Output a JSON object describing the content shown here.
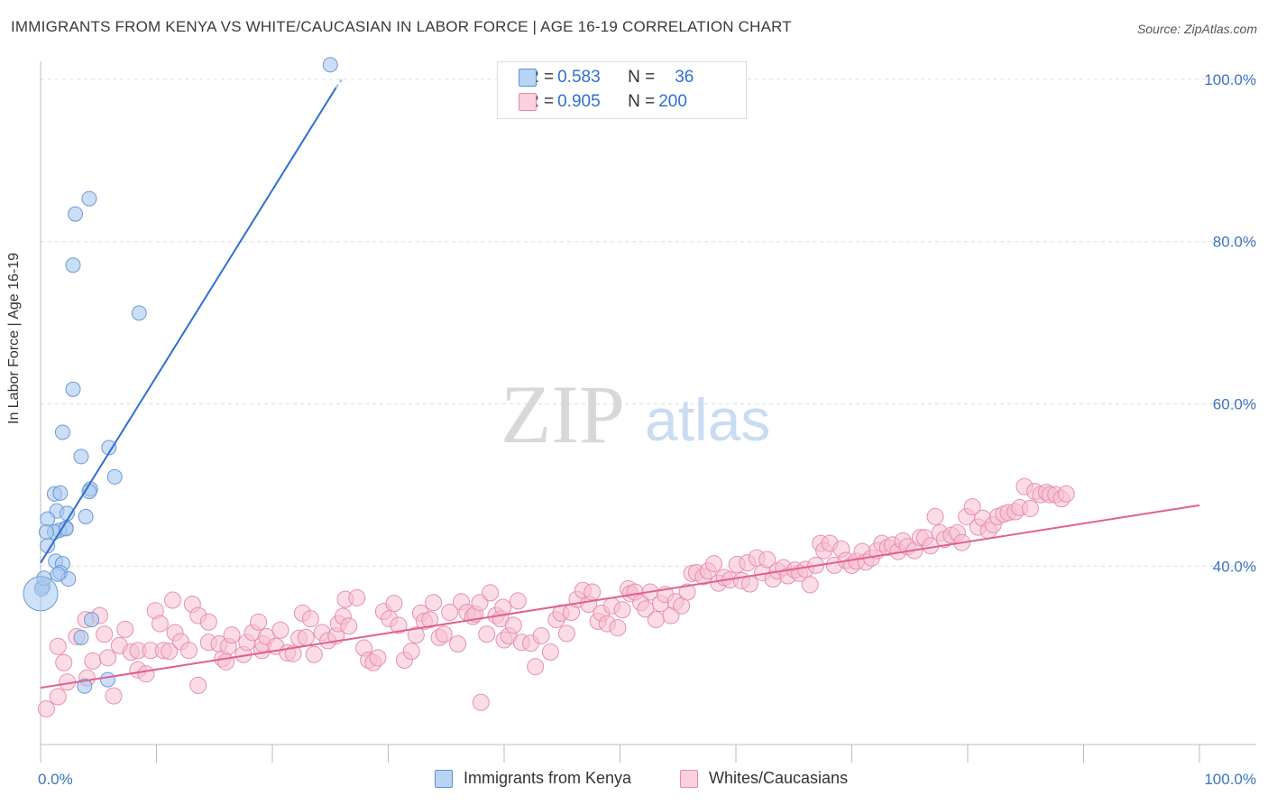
{
  "header": {
    "title": "IMMIGRANTS FROM KENYA VS WHITE/CAUCASIAN IN LABOR FORCE | AGE 16-19 CORRELATION CHART",
    "source": "Source: ZipAtlas.com"
  },
  "watermark": {
    "zip": "ZIP",
    "atlas": "atlas"
  },
  "legend": {
    "rows": [
      {
        "r_label": "R = ",
        "r_value": "0.583",
        "n_label": "N = ",
        "n_value": "36",
        "color": "#a8c8f0",
        "border": "#5b8fd6"
      },
      {
        "r_label": "R = ",
        "r_value": "0.905",
        "n_label": "N = ",
        "n_value": "200",
        "color": "#f8c0d0",
        "border": "#e888a8"
      }
    ]
  },
  "bottom_legend": {
    "items": [
      {
        "label": "Immigrants from Kenya",
        "color": "#b8d4f5",
        "border": "#5b8fd6"
      },
      {
        "label": "Whites/Caucasians",
        "color": "#fad0dc",
        "border": "#e888a8"
      }
    ]
  },
  "chart_data": {
    "type": "scatter",
    "title": "IMMIGRANTS FROM KENYA VS WHITE/CAUCASIAN IN LABOR FORCE | AGE 16-19 CORRELATION CHART",
    "xlabel": "",
    "ylabel": "In Labor Force | Age 16-19",
    "xlim": [
      0,
      100
    ],
    "ylim": [
      18,
      102
    ],
    "x_tick_labels": [
      "0.0%",
      "100.0%"
    ],
    "y_ticks": [
      40,
      60,
      80,
      100
    ],
    "y_tick_labels": [
      "40.0%",
      "60.0%",
      "80.0%",
      "100.0%"
    ],
    "grid": true,
    "series": [
      {
        "name": "Immigrants from Kenya",
        "color": "#a8c8f0",
        "stroke": "#6a9ad8",
        "line_color": "#2f6fd0",
        "trend": [
          [
            0,
            40.4
          ],
          [
            25.5,
            99
          ]
        ],
        "points": [
          [
            25,
            101.8
          ],
          [
            4.2,
            85.3
          ],
          [
            3,
            83.4
          ],
          [
            2.8,
            77.1
          ],
          [
            8.5,
            71.2
          ],
          [
            2.8,
            61.8
          ],
          [
            1.9,
            56.5
          ],
          [
            3.5,
            53.5
          ],
          [
            5.9,
            54.6
          ],
          [
            6.4,
            51
          ],
          [
            4.3,
            49.5
          ],
          [
            4.2,
            49.2
          ],
          [
            1.2,
            48.9
          ],
          [
            1.7,
            49
          ],
          [
            3.9,
            46.1
          ],
          [
            1.4,
            46.8
          ],
          [
            2.3,
            46.5
          ],
          [
            0.6,
            45.8
          ],
          [
            2.2,
            44.7
          ],
          [
            1.6,
            44.4
          ],
          [
            1.2,
            44.2
          ],
          [
            2.2,
            44.6
          ],
          [
            0.5,
            44.2
          ],
          [
            0.6,
            42.5
          ],
          [
            1.3,
            40.6
          ],
          [
            1.9,
            40.3
          ],
          [
            1.7,
            39.2
          ],
          [
            2.4,
            38.4
          ],
          [
            0.2,
            37.5
          ],
          [
            0.1,
            37.2
          ],
          [
            4.4,
            33.4
          ],
          [
            3.5,
            31.2
          ],
          [
            5.8,
            26
          ],
          [
            3.8,
            25.2
          ],
          [
            0.3,
            38.5
          ],
          [
            1.5,
            39
          ]
        ]
      },
      {
        "name": "Whites/Caucasians",
        "color": "#f8c0d0",
        "stroke": "#e590ac",
        "line_color": "#e06090",
        "trend": [
          [
            0,
            25
          ],
          [
            100,
            47.5
          ]
        ],
        "points": [
          [
            0.5,
            22.4
          ],
          [
            1.5,
            23.9
          ],
          [
            1.5,
            30.1
          ],
          [
            2,
            28.1
          ],
          [
            2.3,
            25.7
          ],
          [
            3.1,
            31.3
          ],
          [
            3.9,
            33.4
          ],
          [
            4,
            26.2
          ],
          [
            4.5,
            28.3
          ],
          [
            5.1,
            33.9
          ],
          [
            5.8,
            28.7
          ],
          [
            5.5,
            31.6
          ],
          [
            6.3,
            24
          ],
          [
            6.8,
            30.2
          ],
          [
            7.3,
            32.2
          ],
          [
            7.8,
            29.4
          ],
          [
            8.4,
            27.2
          ],
          [
            8.4,
            29.6
          ],
          [
            9.1,
            26.7
          ],
          [
            9.5,
            29.6
          ],
          [
            9.9,
            34.5
          ],
          [
            10.3,
            32.9
          ],
          [
            10.6,
            29.6
          ],
          [
            11.1,
            29.5
          ],
          [
            11.4,
            35.8
          ],
          [
            11.6,
            31.8
          ],
          [
            12.1,
            30.7
          ],
          [
            12.8,
            29.6
          ],
          [
            13.1,
            35.3
          ],
          [
            13.6,
            33.9
          ],
          [
            13.6,
            25.3
          ],
          [
            14.5,
            33.1
          ],
          [
            14.5,
            30.6
          ],
          [
            15.4,
            30.4
          ],
          [
            15.7,
            28.6
          ],
          [
            16,
            28.2
          ],
          [
            16.2,
            30.1
          ],
          [
            16.5,
            31.5
          ],
          [
            17.5,
            29.1
          ],
          [
            17.8,
            30.6
          ],
          [
            18.3,
            31.8
          ],
          [
            18.8,
            33.1
          ],
          [
            19.1,
            29.6
          ],
          [
            19.2,
            30.4
          ],
          [
            19.5,
            31.3
          ],
          [
            20.3,
            30.1
          ],
          [
            20.7,
            32.1
          ],
          [
            21.3,
            29.3
          ],
          [
            21.8,
            29.2
          ],
          [
            22.3,
            31.1
          ],
          [
            22.6,
            34.2
          ],
          [
            22.9,
            31.2
          ],
          [
            23.3,
            33.5
          ],
          [
            23.6,
            29.1
          ],
          [
            24.3,
            31.8
          ],
          [
            24.8,
            30.8
          ],
          [
            25.5,
            31.4
          ],
          [
            25.7,
            32.9
          ],
          [
            26.1,
            33.8
          ],
          [
            26.6,
            32.6
          ],
          [
            26.3,
            35.9
          ],
          [
            27.3,
            36.1
          ],
          [
            27.9,
            29.9
          ],
          [
            28.3,
            28.4
          ],
          [
            28.7,
            28.1
          ],
          [
            29.1,
            28.7
          ],
          [
            29.6,
            34.4
          ],
          [
            30.1,
            33.5
          ],
          [
            30.5,
            35.4
          ],
          [
            30.9,
            32.7
          ],
          [
            31.4,
            28.4
          ],
          [
            32,
            29.5
          ],
          [
            32.4,
            31.5
          ],
          [
            32.8,
            34.2
          ],
          [
            33.1,
            33.2
          ],
          [
            33.6,
            33.4
          ],
          [
            33.9,
            35.5
          ],
          [
            34.4,
            31.2
          ],
          [
            34.8,
            31.6
          ],
          [
            35.3,
            34.3
          ],
          [
            36,
            30.4
          ],
          [
            36.3,
            35.6
          ],
          [
            36.8,
            34.3
          ],
          [
            37.3,
            33.8
          ],
          [
            37.5,
            34.1
          ],
          [
            37.9,
            35.5
          ],
          [
            38,
            23.2
          ],
          [
            38.5,
            31.6
          ],
          [
            38.8,
            36.7
          ],
          [
            39.3,
            33.9
          ],
          [
            39.7,
            33.5
          ],
          [
            39.9,
            34.9
          ],
          [
            40,
            30.9
          ],
          [
            40.4,
            31.4
          ],
          [
            40.8,
            32.7
          ],
          [
            41.2,
            35.7
          ],
          [
            41.5,
            30.6
          ],
          [
            42.3,
            30.5
          ],
          [
            42.7,
            27.6
          ],
          [
            43.2,
            31.4
          ],
          [
            44,
            29.4
          ],
          [
            44.5,
            33.4
          ],
          [
            44.9,
            34.2
          ],
          [
            45.4,
            31.7
          ],
          [
            45.8,
            34.3
          ],
          [
            46.3,
            35.9
          ],
          [
            46.8,
            37
          ],
          [
            47.3,
            35.3
          ],
          [
            47.6,
            36.8
          ],
          [
            48.1,
            33.2
          ],
          [
            48.4,
            34.2
          ],
          [
            48.9,
            32.9
          ],
          [
            49.3,
            35.1
          ],
          [
            49.8,
            32.4
          ],
          [
            50.2,
            34.6
          ],
          [
            50.7,
            37.2
          ],
          [
            50.9,
            36.6
          ],
          [
            51.3,
            36.8
          ],
          [
            51.8,
            35.5
          ],
          [
            52.2,
            34.7
          ],
          [
            52.6,
            36.8
          ],
          [
            53.1,
            33.4
          ],
          [
            53.5,
            35.4
          ],
          [
            53.9,
            36.5
          ],
          [
            54.4,
            33.9
          ],
          [
            54.8,
            35.6
          ],
          [
            55.3,
            35.1
          ],
          [
            55.8,
            36.8
          ],
          [
            56.2,
            39.1
          ],
          [
            56.6,
            39.2
          ],
          [
            57.2,
            38.7
          ],
          [
            57.6,
            39.4
          ],
          [
            58.1,
            40.3
          ],
          [
            58.5,
            37.9
          ],
          [
            59,
            38.6
          ],
          [
            59.5,
            38.3
          ],
          [
            60.1,
            40.2
          ],
          [
            60.5,
            38.2
          ],
          [
            61,
            40.4
          ],
          [
            61.2,
            37.8
          ],
          [
            61.8,
            41
          ],
          [
            62.3,
            39.2
          ],
          [
            62.7,
            40.8
          ],
          [
            63.2,
            38.4
          ],
          [
            63.6,
            39.4
          ],
          [
            64.1,
            39.8
          ],
          [
            64.5,
            38.8
          ],
          [
            65.1,
            39.5
          ],
          [
            65.5,
            39.1
          ],
          [
            66,
            39.6
          ],
          [
            66.4,
            37.7
          ],
          [
            66.9,
            40.1
          ],
          [
            67.3,
            42.8
          ],
          [
            67.6,
            41.9
          ],
          [
            68.1,
            42.8
          ],
          [
            68.5,
            40.1
          ],
          [
            69.1,
            42.1
          ],
          [
            69.5,
            40.7
          ],
          [
            70,
            40.1
          ],
          [
            70.4,
            40.6
          ],
          [
            70.9,
            41.8
          ],
          [
            71.2,
            40.5
          ],
          [
            71.7,
            41
          ],
          [
            72.2,
            41.9
          ],
          [
            72.6,
            42.8
          ],
          [
            73.1,
            42.3
          ],
          [
            73.5,
            42.6
          ],
          [
            74,
            41.8
          ],
          [
            74.4,
            43.1
          ],
          [
            74.8,
            42.4
          ],
          [
            75.4,
            41.9
          ],
          [
            75.9,
            43.5
          ],
          [
            76.3,
            43.5
          ],
          [
            76.8,
            42.5
          ],
          [
            77.2,
            46.1
          ],
          [
            77.6,
            44.1
          ],
          [
            78,
            43.3
          ],
          [
            78.6,
            43.8
          ],
          [
            79.1,
            44.1
          ],
          [
            79.5,
            42.9
          ],
          [
            79.9,
            46.1
          ],
          [
            80.4,
            47.3
          ],
          [
            80.9,
            44.8
          ],
          [
            81.3,
            45.9
          ],
          [
            81.8,
            44.4
          ],
          [
            82.2,
            45.1
          ],
          [
            82.6,
            46.1
          ],
          [
            83.1,
            46.4
          ],
          [
            83.5,
            46.6
          ],
          [
            84.1,
            46.7
          ],
          [
            84.5,
            47.2
          ],
          [
            84.9,
            49.8
          ],
          [
            85.4,
            47.1
          ],
          [
            85.8,
            49.2
          ],
          [
            86.3,
            48.8
          ],
          [
            86.8,
            49.1
          ],
          [
            87.1,
            48.8
          ],
          [
            87.6,
            48.8
          ],
          [
            88.1,
            48.3
          ],
          [
            88.5,
            48.9
          ]
        ]
      }
    ]
  }
}
